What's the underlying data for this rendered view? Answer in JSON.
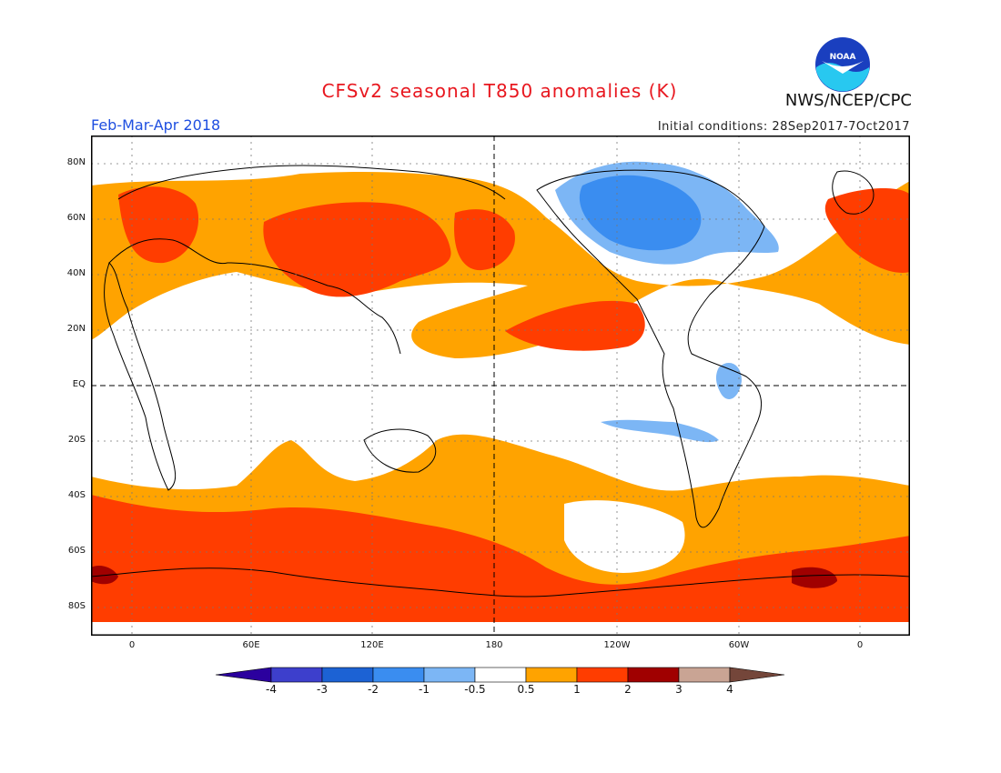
{
  "title": "CFSv2 seasonal T850 anomalies (K)",
  "agency": "NWS/NCEP/CPC",
  "logo_text": "NOAA",
  "period": "Feb-Mar-Apr 2018",
  "initial_conditions": "Initial conditions: 28Sep2017-7Oct2017",
  "map": {
    "lat_labels": [
      "80N",
      "60N",
      "40N",
      "20N",
      "EQ",
      "20S",
      "40S",
      "60S",
      "80S"
    ],
    "lon_labels": [
      "0",
      "60E",
      "120E",
      "180",
      "120W",
      "60W",
      "0"
    ]
  },
  "colorbar": {
    "labels": [
      "-4",
      "-3",
      "-2",
      "-1",
      "-0.5",
      "0.5",
      "1",
      "2",
      "3",
      "4"
    ],
    "colors": [
      "#2b009e",
      "#3d3fcc",
      "#1c62d4",
      "#3a8df0",
      "#7cb6f5",
      "#ffffff",
      "#ffa300",
      "#ff3d00",
      "#a00000",
      "#c9a494",
      "#74463a"
    ]
  }
}
